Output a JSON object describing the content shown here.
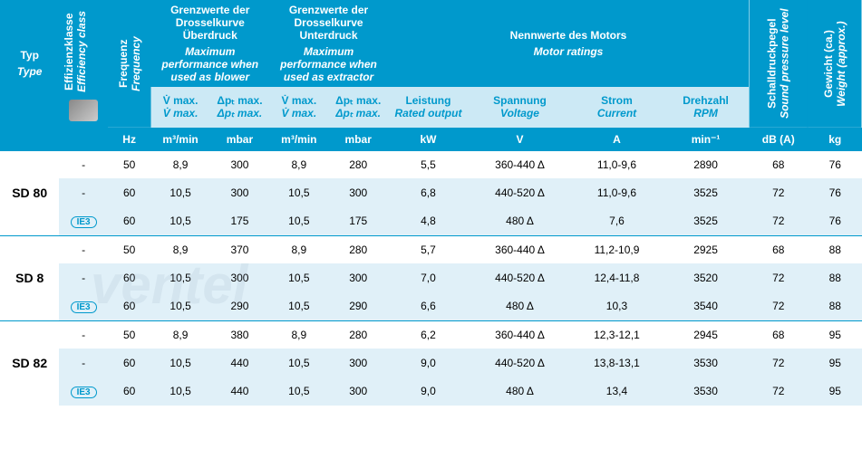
{
  "colors": {
    "header_bg": "#0099cc",
    "header_fg": "#ffffff",
    "subheader_bg": "#cce9f5",
    "subheader_fg": "#0099cc",
    "alt_row_bg": "#e0f0f8",
    "border": "#0099cc"
  },
  "watermark": "ventel",
  "headers": {
    "typ": {
      "de": "Typ",
      "en": "Type"
    },
    "eff": {
      "de": "Effizienzklasse",
      "en": "Efficiency class"
    },
    "freq": {
      "de": "Frequenz",
      "en": "Frequency"
    },
    "uberdruck": {
      "de": "Grenzwerte der Drosselkurve Überdruck",
      "en": "Maximum performance when used as blower"
    },
    "unterdruck": {
      "de": "Grenzwerte der Drosselkurve Unterdruck",
      "en": "Maximum performance when used as extractor"
    },
    "motor": {
      "de": "Nennwerte des Motors",
      "en": "Motor ratings"
    },
    "schall": {
      "de": "Schalldruckpegel",
      "en": "Sound pressure level"
    },
    "gewicht": {
      "de": "Gewicht (ca.)",
      "en": "Weight (approx.)"
    },
    "vmax": {
      "de": "V̇ max.",
      "en": "V̇ max."
    },
    "pmax": {
      "de": "Δpₜ max.",
      "en": "Δpₜ max."
    },
    "leistung": {
      "de": "Leistung",
      "en": "Rated output"
    },
    "spannung": {
      "de": "Spannung",
      "en": "Voltage"
    },
    "strom": {
      "de": "Strom",
      "en": "Current"
    },
    "drehzahl": {
      "de": "Drehzahl",
      "en": "RPM"
    }
  },
  "units": {
    "freq": "Hz",
    "vmax": "m³/min",
    "pmax": "mbar",
    "kw": "kW",
    "volt": "V",
    "amp": "A",
    "rpm": "min⁻¹",
    "db": "dB (A)",
    "kg": "kg"
  },
  "ie3_label": "IE3",
  "groups": [
    {
      "type": "SD 80",
      "rows": [
        {
          "eff": "-",
          "hz": "50",
          "v1": "8,9",
          "p1": "300",
          "v2": "8,9",
          "p2": "280",
          "kw": "5,5",
          "volt": "360-440 Δ",
          "amp": "11,0-9,6",
          "rpm": "2890",
          "db": "68",
          "kg": "76",
          "alt": false
        },
        {
          "eff": "-",
          "hz": "60",
          "v1": "10,5",
          "p1": "300",
          "v2": "10,5",
          "p2": "300",
          "kw": "6,8",
          "volt": "440-520 Δ",
          "amp": "11,0-9,6",
          "rpm": "3525",
          "db": "72",
          "kg": "76",
          "alt": true
        },
        {
          "eff": "IE3",
          "hz": "60",
          "v1": "10,5",
          "p1": "175",
          "v2": "10,5",
          "p2": "175",
          "kw": "4,8",
          "volt": "480 Δ",
          "amp": "7,6",
          "rpm": "3525",
          "db": "72",
          "kg": "76",
          "alt": true
        }
      ]
    },
    {
      "type": "SD 8",
      "rows": [
        {
          "eff": "-",
          "hz": "50",
          "v1": "8,9",
          "p1": "370",
          "v2": "8,9",
          "p2": "280",
          "kw": "5,7",
          "volt": "360-440 Δ",
          "amp": "11,2-10,9",
          "rpm": "2925",
          "db": "68",
          "kg": "88",
          "alt": false
        },
        {
          "eff": "-",
          "hz": "60",
          "v1": "10,5",
          "p1": "300",
          "v2": "10,5",
          "p2": "300",
          "kw": "7,0",
          "volt": "440-520 Δ",
          "amp": "12,4-11,8",
          "rpm": "3520",
          "db": "72",
          "kg": "88",
          "alt": true
        },
        {
          "eff": "IE3",
          "hz": "60",
          "v1": "10,5",
          "p1": "290",
          "v2": "10,5",
          "p2": "290",
          "kw": "6,6",
          "volt": "480 Δ",
          "amp": "10,3",
          "rpm": "3540",
          "db": "72",
          "kg": "88",
          "alt": true
        }
      ]
    },
    {
      "type": "SD 82",
      "rows": [
        {
          "eff": "-",
          "hz": "50",
          "v1": "8,9",
          "p1": "380",
          "v2": "8,9",
          "p2": "280",
          "kw": "6,2",
          "volt": "360-440 Δ",
          "amp": "12,3-12,1",
          "rpm": "2945",
          "db": "68",
          "kg": "95",
          "alt": false
        },
        {
          "eff": "-",
          "hz": "60",
          "v1": "10,5",
          "p1": "440",
          "v2": "10,5",
          "p2": "300",
          "kw": "9,0",
          "volt": "440-520 Δ",
          "amp": "13,8-13,1",
          "rpm": "3530",
          "db": "72",
          "kg": "95",
          "alt": true
        },
        {
          "eff": "IE3",
          "hz": "60",
          "v1": "10,5",
          "p1": "440",
          "v2": "10,5",
          "p2": "300",
          "kw": "9,0",
          "volt": "480 Δ",
          "amp": "13,4",
          "rpm": "3530",
          "db": "72",
          "kg": "95",
          "alt": true
        }
      ]
    }
  ]
}
